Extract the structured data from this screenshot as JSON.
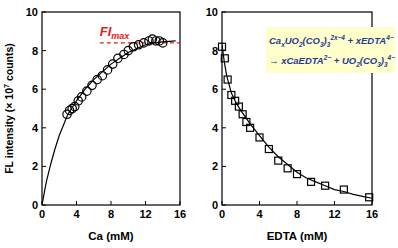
{
  "chart_data": [
    {
      "type": "scatter",
      "x_label": "Ca (mM)",
      "y_label": [
        {
          "base": "FL intensity (× 10"
        },
        {
          "sup": "7"
        },
        {
          "base": " counts)"
        }
      ],
      "xlim": [
        0,
        16
      ],
      "ylim": [
        0,
        10
      ],
      "xticks": [
        0,
        4,
        8,
        12,
        16
      ],
      "yticks": [
        0,
        2,
        4,
        6,
        8,
        10
      ],
      "series": [
        {
          "type": "scatter",
          "marker": "circle",
          "color": "#000000",
          "x": [
            2.9,
            3.2,
            3.5,
            3.8,
            4.2,
            4.6,
            5.2,
            5.8,
            6.4,
            7.0,
            7.6,
            8.2,
            8.8,
            9.5,
            10.0,
            10.6,
            11.2,
            11.8,
            12.4,
            12.8,
            13.2,
            13.6,
            14.0
          ],
          "values": [
            4.7,
            4.9,
            5.0,
            5.1,
            5.4,
            5.6,
            5.9,
            6.2,
            6.5,
            6.7,
            7.0,
            7.3,
            7.6,
            7.8,
            8.0,
            8.2,
            8.3,
            8.4,
            8.5,
            8.6,
            8.5,
            8.5,
            8.4
          ]
        },
        {
          "type": "line",
          "line_style": "solid",
          "color": "#000000",
          "x": [
            0,
            0.5,
            1,
            1.5,
            2,
            3,
            4,
            5,
            6,
            7,
            8,
            9,
            10,
            11,
            12,
            13,
            14,
            15.5
          ],
          "values": [
            0,
            1.2,
            2.1,
            2.9,
            3.6,
            4.7,
            5.4,
            6.0,
            6.5,
            6.9,
            7.3,
            7.6,
            7.9,
            8.1,
            8.3,
            8.4,
            8.45,
            8.5
          ]
        }
      ],
      "reference_line": {
        "label": "FI",
        "label_sub": "max",
        "value": 8.4,
        "x": [
          6.7,
          16
        ],
        "color": "#e8191c",
        "line_style": "dashed"
      }
    },
    {
      "type": "scatter",
      "x_label": "EDTA (mM)",
      "xlim": [
        0,
        16
      ],
      "ylim": [
        0,
        10
      ],
      "xticks": [
        0,
        4,
        8,
        12,
        16
      ],
      "yticks": [
        0,
        2,
        4,
        6,
        8,
        10
      ],
      "series": [
        {
          "type": "scatter",
          "marker": "square",
          "color": "#000000",
          "x": [
            0,
            0.3,
            0.6,
            1.0,
            1.4,
            1.8,
            2.2,
            2.6,
            3.0,
            4.0,
            5.0,
            6.0,
            7.0,
            8.0,
            9.5,
            11.0,
            13.0,
            15.7
          ],
          "values": [
            8.2,
            7.6,
            6.5,
            5.7,
            5.4,
            5.1,
            4.7,
            4.3,
            4.0,
            3.5,
            2.9,
            2.3,
            1.9,
            1.6,
            1.2,
            1.0,
            0.8,
            0.4
          ]
        },
        {
          "type": "line",
          "line_style": "solid",
          "color": "#000000",
          "x": [
            0,
            0.25,
            0.5,
            1,
            1.5,
            2,
            3,
            4,
            5,
            6,
            7,
            8,
            9,
            10,
            11,
            12,
            13,
            14,
            15,
            16
          ],
          "values": [
            8.3,
            7.4,
            6.7,
            5.8,
            5.3,
            4.9,
            4.2,
            3.6,
            3.0,
            2.5,
            2.1,
            1.7,
            1.4,
            1.2,
            1.0,
            0.8,
            0.7,
            0.55,
            0.45,
            0.35
          ]
        }
      ],
      "annotation": {
        "color": "#1f3a93",
        "lines": [
          [
            {
              "base": "Ca"
            },
            {
              "sub": "x"
            },
            {
              "base": "UO"
            },
            {
              "sub": "2"
            },
            {
              "base": "(CO"
            },
            {
              "sub": "3"
            },
            {
              "base": ")"
            },
            {
              "sub": "3"
            },
            {
              "sup": "2x−4"
            },
            {
              "base": " + xEDTA"
            },
            {
              "sup": "4−"
            }
          ],
          [
            {
              "base": "→ xCaEDTA"
            },
            {
              "sup": "2−"
            },
            {
              "base": " + UO"
            },
            {
              "sub": "2"
            },
            {
              "base": "(CO"
            },
            {
              "sub": "3"
            },
            {
              "base": ")"
            },
            {
              "sub": "3"
            },
            {
              "sup": "4−"
            }
          ]
        ]
      }
    }
  ]
}
